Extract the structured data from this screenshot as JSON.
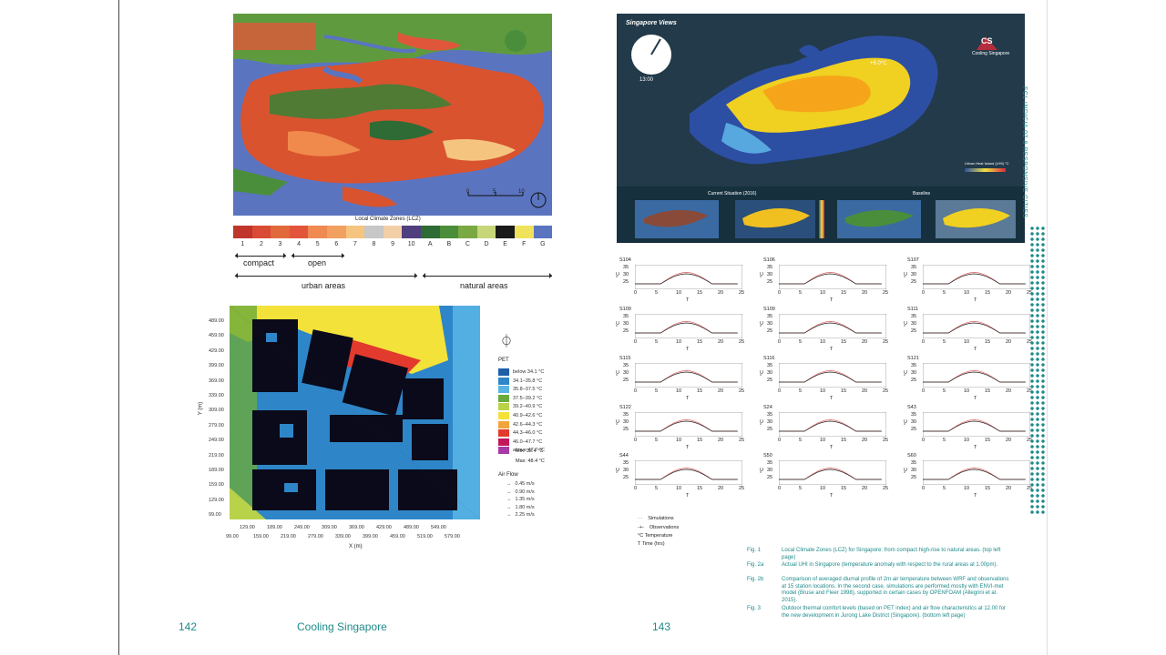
{
  "left_page": {
    "page_number": "142",
    "running_title": "Cooling Singapore",
    "lcz_title": "Local Climate Zones (LCZ)",
    "lcz_codes": [
      "1",
      "2",
      "3",
      "4",
      "5",
      "6",
      "7",
      "8",
      "9",
      "10",
      "A",
      "B",
      "C",
      "D",
      "E",
      "F",
      "G"
    ],
    "lcz_colors": [
      "#c0362c",
      "#d94b34",
      "#e06a3c",
      "#e2553a",
      "#ef8a52",
      "#f2a060",
      "#f5c580",
      "#c7c7c7",
      "#f3cfa8",
      "#4f3f7e",
      "#2e6b35",
      "#4a8e3b",
      "#7aa842",
      "#c8d67a",
      "#1a1a1a",
      "#f0e25a",
      "#5a74c0"
    ],
    "compact": "compact",
    "open": "open",
    "urban": "urban areas",
    "natural": "natural areas",
    "scale_labels": [
      "0",
      "5",
      "10"
    ],
    "fig3": {
      "y_label": "Y (m)",
      "x_label": "X (m)",
      "y_ticks": [
        "489.00",
        "459.00",
        "429.00",
        "399.00",
        "369.00",
        "339.00",
        "309.00",
        "279.00",
        "249.00",
        "219.00",
        "189.00",
        "159.00",
        "129.00",
        "99.00"
      ],
      "x_ticks_top": [
        "129.00",
        "189.00",
        "249.00",
        "309.00",
        "369.00",
        "429.00",
        "489.00",
        "549.00"
      ],
      "x_ticks_bottom": [
        "99.00",
        "159.00",
        "219.00",
        "279.00",
        "339.00",
        "399.00",
        "459.00",
        "519.00",
        "579.00"
      ],
      "pet_title": "PET",
      "pet_items": [
        {
          "label": "below 34.1 °C",
          "color": "#1f5fa8"
        },
        {
          "label": "34.1–35.8 °C",
          "color": "#2f86c8"
        },
        {
          "label": "35.8–37.5 °C",
          "color": "#58b4e4"
        },
        {
          "label": "37.5–39.2 °C",
          "color": "#6aaa3c"
        },
        {
          "label": "39.2–40.9 °C",
          "color": "#b8d24a"
        },
        {
          "label": "40.9–42.6 °C",
          "color": "#f3e23a"
        },
        {
          "label": "42.6–44.3 °C",
          "color": "#f2a43a"
        },
        {
          "label": "44.3–46.0 °C",
          "color": "#e23a2c"
        },
        {
          "label": "46.0–47.7 °C",
          "color": "#c2185b"
        },
        {
          "label": "above 47.7 °C",
          "color": "#a83aa8"
        }
      ],
      "min": "Min: 32.4 °C",
      "max": "Max: 48.4 °C",
      "airflow_title": "Air Flow",
      "airflow": [
        "0.45 m/s",
        "0.90 m/s",
        "1.35 m/s",
        "1.80 m/s",
        "2.25 m/s"
      ]
    }
  },
  "right_page": {
    "page_number": "143",
    "sg_title": "Singapore Views",
    "clock_time": "13:00",
    "temp_marker": "+6.0°C",
    "logo_text": "CS",
    "logo_sub": "Cooling Singapore",
    "legend_title": "Urban Heat Island (UHI) °C",
    "legend_ticks": [
      "0",
      "1",
      "2",
      "3"
    ],
    "current": "Current Situation (2016)",
    "baseline": "Baseline",
    "thumb_labels": [
      "Hotspots",
      "Temperature",
      "Temperature °C",
      "Hotspots",
      "Temperature"
    ],
    "stations": [
      "S104",
      "S106",
      "S107",
      "S109",
      "S109",
      "S111",
      "S115",
      "S116",
      "S121",
      "S122",
      "S24",
      "S43",
      "S44",
      "S50",
      "S60"
    ],
    "y_ticks": [
      "35",
      "30",
      "25"
    ],
    "x_ticks": [
      "0",
      "5",
      "10",
      "15",
      "20",
      "25"
    ],
    "y_axis": "°C",
    "x_axis": "T",
    "legend_sim": "Simulations",
    "legend_obs": "Observations",
    "legend_temp": "°C    Temperature",
    "legend_time": "T     Time (hrs)",
    "captions": [
      {
        "fig": "Fig. 1",
        "text": "Local Climate Zones (LCZ) for Singapore: from compact high-rise to natural areas. (top left page)"
      },
      {
        "fig": "Fig. 2a",
        "text": "Actual UHI in Singapore (temperature anomaly with respect to the rural areas at 1.00pm)."
      },
      {
        "fig": "Fig. 2b",
        "text": "Comparison of averaged diurnal profile of 2m air temperature between WRF and observations at 15 station locations. In the second case, simulations are performed mostly with ENVI-met model (Bruse and Fleer 1998), supported in certain cases by OPENFOAM (Allegrini et al. 2015)."
      },
      {
        "fig": "Fig. 3",
        "text": "Outdoor thermal comfort levels (based on PET index) and air flow characteristics at 12.00 for the new development in Jurong Lake District (Singapore). (bottom left page)"
      }
    ],
    "side_text": "FCL    INDICIA 02    8    RESPONSIVE CITIES"
  }
}
